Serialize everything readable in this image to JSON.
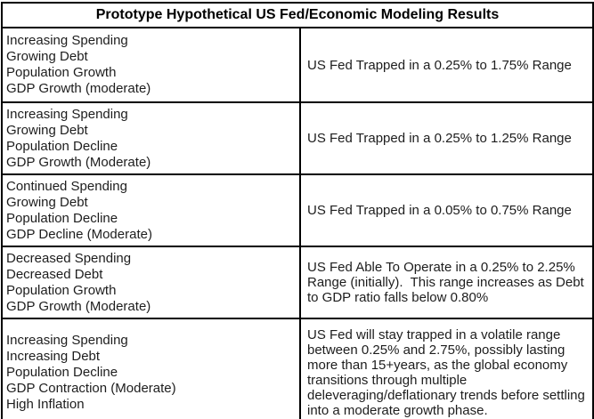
{
  "table": {
    "title": "Prototype Hypothetical US Fed/Economic Modeling Results",
    "rows": [
      {
        "conditions": "Increasing Spending\nGrowing Debt\nPopulation Growth\nGDP Growth (moderate)",
        "result": "US Fed Trapped in a 0.25% to 1.75% Range"
      },
      {
        "conditions": "Increasing Spending\nGrowing Debt\nPopulation Decline\nGDP Growth (Moderate)",
        "result": "US Fed Trapped in a 0.25% to 1.25% Range"
      },
      {
        "conditions": "Continued Spending\nGrowing Debt\nPopulation Decline\nGDP Decline (Moderate)",
        "result": "US Fed Trapped in a 0.05% to 0.75% Range"
      },
      {
        "conditions": "Decreased Spending\nDecreased Debt\nPopulation Growth\nGDP Growth (Moderate)",
        "result": "US Fed Able To Operate in a 0.25% to 2.25% Range (initially).  This range increases as Debt to GDP ratio falls below 0.80%"
      },
      {
        "conditions": "Increasing Spending\nIncreasing Debt\nPopulation Decline\nGDP Contraction (Moderate)\nHigh Inflation",
        "result": "US Fed will stay trapped in a volatile range between 0.25% and 2.75%, possibly lasting more than 15+years, as the global economy transitions through multiple deleveraging/deflationary trends before settling into a moderate growth phase."
      }
    ]
  },
  "colors": {
    "border": "#000000",
    "background": "#ffffff",
    "text": "#1d1d1d"
  }
}
